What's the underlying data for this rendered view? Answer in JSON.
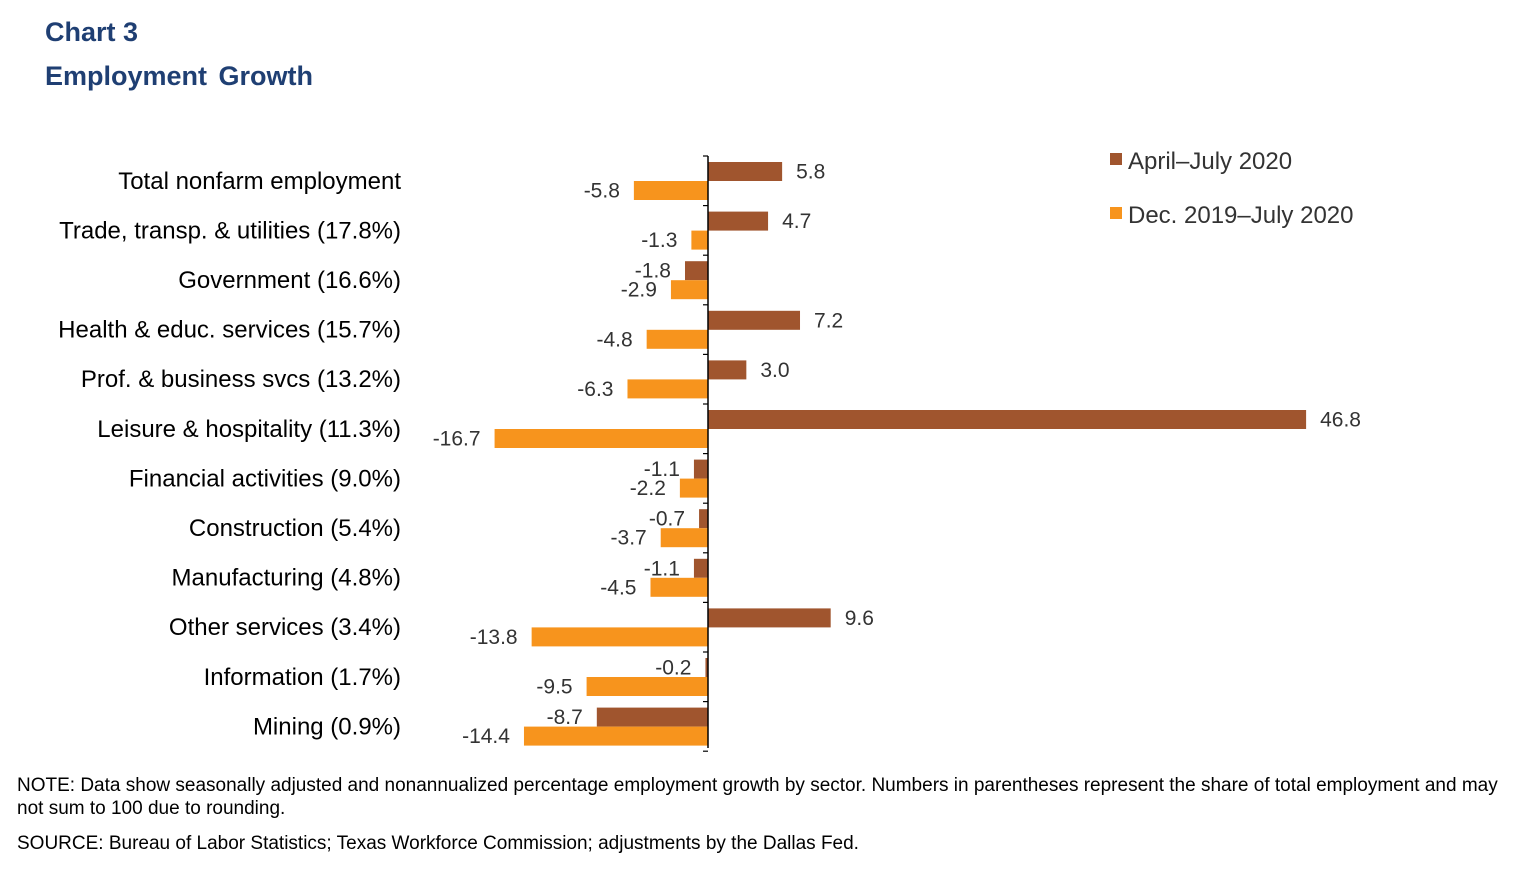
{
  "header": {
    "chart_label": "Chart 3",
    "chart_title": "Employment  Growth"
  },
  "footer": {
    "note": "NOTE: Data show seasonally adjusted and nonannualized  percentage employment growth by sector. Numbers in parentheses represent the share of total employment and may not sum to 100 due to rounding.",
    "source": "SOURCE: Bureau of Labor Statistics; Texas Workforce Commission; adjustments  by the Dallas Fed."
  },
  "colors": {
    "series1": "#a0552e",
    "series2": "#f7941d",
    "title": "#1f3f73",
    "label_text": "#333333"
  },
  "chart_data": {
    "type": "bar",
    "orientation": "horizontal",
    "categories": [
      "Total nonfarm employment",
      "Trade, transp. & utilities (17.8%)",
      "Government (16.6%)",
      "Health & educ. services (15.7%)",
      "Prof. & business svcs (13.2%)",
      "Leisure & hospitality (11.3%)",
      "Financial activities (9.0%)",
      "Construction (5.4%)",
      "Manufacturing (4.8%)",
      "Other services (3.4%)",
      "Information (1.7%)",
      "Mining (0.9%)"
    ],
    "series": [
      {
        "name": "April–July 2020",
        "values": [
          5.8,
          4.7,
          -1.8,
          7.2,
          3.0,
          46.8,
          -1.1,
          -0.7,
          -1.1,
          9.6,
          -0.2,
          -8.7
        ],
        "labels": [
          "5.8",
          "4.7",
          "-1.8",
          "7.2",
          "3.0",
          "46.8",
          "-1.1",
          "-0.7",
          "-1.1",
          "9.6",
          "-0.2",
          "-8.7"
        ]
      },
      {
        "name": "Dec. 2019–July 2020",
        "values": [
          -5.8,
          -1.3,
          -2.9,
          -4.8,
          -6.3,
          -16.7,
          -2.2,
          -3.7,
          -4.5,
          -13.8,
          -9.5,
          -14.4
        ],
        "labels": [
          "-5.8",
          "-1.3",
          "-2.9",
          "-4.8",
          "-6.3",
          "-16.7",
          "-2.2",
          "-3.7",
          "-4.5",
          "-13.8",
          "-9.5",
          "-14.4"
        ]
      }
    ],
    "legend_position": "top-right",
    "grid": false
  }
}
